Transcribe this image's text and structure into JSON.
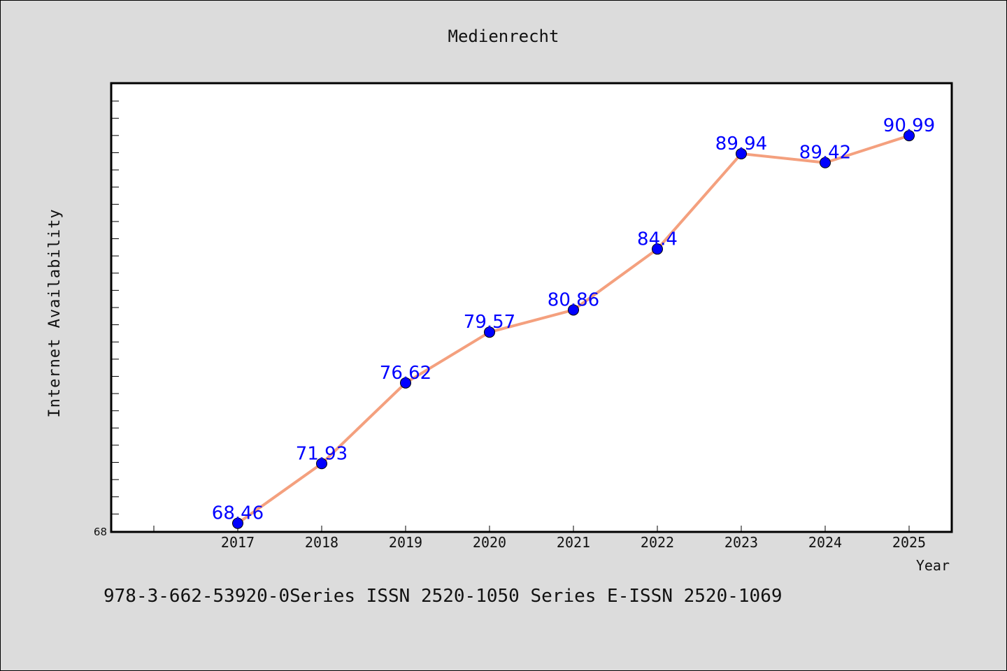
{
  "chart_data": {
    "type": "line",
    "title": "Medienrecht",
    "xlabel": "Year",
    "ylabel": "Internet Availability",
    "categories": [
      "2017",
      "2018",
      "2019",
      "2020",
      "2021",
      "2022",
      "2023",
      "2024",
      "2025"
    ],
    "series": [
      {
        "values": [
          68.46,
          71.93,
          76.62,
          79.57,
          80.86,
          84.4,
          89.94,
          89.42,
          90.99
        ],
        "labels": [
          "68.46",
          "71.93",
          "76.62",
          "79.57",
          "80.86",
          "84.4",
          "89.94",
          "89.42",
          "90.99"
        ],
        "line_color": "#f4a07e",
        "marker_color": "#0000ff"
      }
    ],
    "ylim": [
      68,
      94
    ],
    "ytick_labels": [
      "68"
    ],
    "grid": false,
    "legend": "none"
  },
  "footer": {
    "text": "978-3-662-53920-0Series ISSN 2520-1050 Series E-ISSN 2520-1069"
  }
}
